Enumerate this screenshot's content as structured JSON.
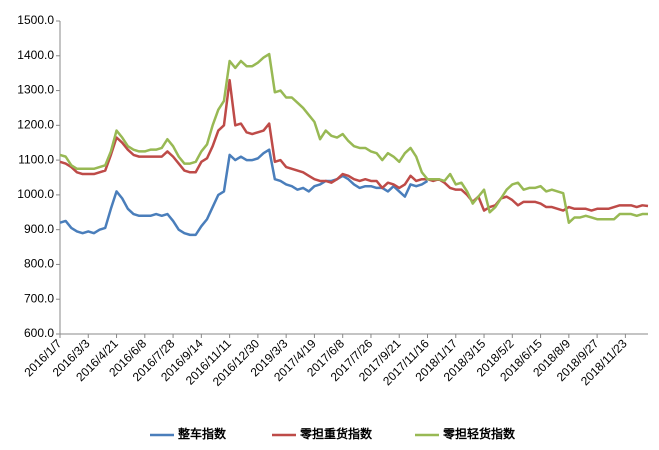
{
  "chart_data": {
    "type": "line",
    "categories": [
      "2016/1/7",
      null,
      null,
      null,
      null,
      "2016/3/3",
      null,
      null,
      null,
      null,
      "2016/4/21",
      null,
      null,
      null,
      null,
      "2016/6/8",
      null,
      null,
      null,
      null,
      "2016/7/28",
      null,
      null,
      null,
      null,
      "2016/9/14",
      null,
      null,
      null,
      null,
      "2016/11/11",
      null,
      null,
      null,
      null,
      "2016/12/30",
      null,
      null,
      null,
      null,
      "2019/3/3",
      null,
      null,
      null,
      null,
      "2017/4/19",
      null,
      null,
      null,
      null,
      "2017/6/8",
      null,
      null,
      null,
      null,
      "2017/7/26",
      null,
      null,
      null,
      null,
      "2017/9/21",
      null,
      null,
      null,
      null,
      "2017/11/16",
      null,
      null,
      null,
      null,
      "2018/1/17",
      null,
      null,
      null,
      null,
      "2018/3/15",
      null,
      null,
      null,
      null,
      "2018/5/2",
      null,
      null,
      null,
      null,
      "2018/6/15",
      null,
      null,
      null,
      null,
      "2018/8/9",
      null,
      null,
      null,
      null,
      "2018/9/27",
      null,
      null,
      null,
      null,
      "2018/11/23",
      null,
      null,
      null,
      null
    ],
    "series": [
      {
        "name": "整车指数",
        "color": "#4a7ebb",
        "values": [
          920,
          925,
          905,
          895,
          890,
          895,
          890,
          900,
          905,
          960,
          1010,
          990,
          960,
          945,
          940,
          940,
          940,
          945,
          940,
          945,
          925,
          900,
          890,
          885,
          885,
          910,
          930,
          965,
          1000,
          1010,
          1115,
          1100,
          1110,
          1100,
          1100,
          1105,
          1120,
          1130,
          1045,
          1040,
          1030,
          1025,
          1015,
          1020,
          1010,
          1025,
          1030,
          1040,
          1040,
          1045,
          1055,
          1045,
          1030,
          1020,
          1025,
          1025,
          1020,
          1020,
          1010,
          1025,
          1010,
          995,
          1030,
          1025,
          1030,
          1040,
          null,
          null,
          null,
          null,
          null,
          null,
          null,
          null,
          null,
          null,
          null,
          null,
          null,
          null,
          null,
          null,
          null,
          null,
          null,
          null,
          null,
          null,
          null,
          null,
          null,
          null,
          null,
          null,
          null,
          null,
          null,
          null,
          null,
          null,
          null,
          null,
          null,
          null,
          null
        ]
      },
      {
        "name": "零担重货指数",
        "color": "#be4b48",
        "values": [
          1095,
          1090,
          1080,
          1065,
          1060,
          1060,
          1060,
          1065,
          1070,
          1115,
          1165,
          1150,
          1130,
          1115,
          1110,
          1110,
          1110,
          1110,
          1110,
          1125,
          1110,
          1090,
          1070,
          1065,
          1065,
          1095,
          1105,
          1140,
          1185,
          1200,
          1330,
          1200,
          1205,
          1180,
          1175,
          1180,
          1185,
          1205,
          1095,
          1100,
          1080,
          1075,
          1070,
          1065,
          1055,
          1045,
          1040,
          1040,
          1035,
          1045,
          1060,
          1055,
          1045,
          1040,
          1045,
          1040,
          1040,
          1020,
          1035,
          1030,
          1020,
          1030,
          1055,
          1040,
          1045,
          1045,
          1040,
          1045,
          1035,
          1020,
          1015,
          1015,
          1000,
          980,
          995,
          955,
          965,
          970,
          990,
          995,
          985,
          970,
          980,
          980,
          980,
          975,
          965,
          965,
          960,
          955,
          965,
          960,
          960,
          960,
          955,
          960,
          960,
          960,
          965,
          970,
          970,
          970,
          965,
          970,
          968
        ]
      },
      {
        "name": "零担轻货指数",
        "color": "#98b954",
        "values": [
          1115,
          1110,
          1085,
          1075,
          1075,
          1075,
          1075,
          1080,
          1085,
          1125,
          1185,
          1165,
          1140,
          1130,
          1125,
          1125,
          1130,
          1130,
          1135,
          1160,
          1140,
          1110,
          1090,
          1090,
          1095,
          1125,
          1145,
          1200,
          1245,
          1270,
          1385,
          1365,
          1385,
          1370,
          1370,
          1380,
          1395,
          1405,
          1295,
          1300,
          1280,
          1280,
          1265,
          1250,
          1230,
          1210,
          1160,
          1185,
          1170,
          1165,
          1175,
          1155,
          1140,
          1135,
          1135,
          1125,
          1120,
          1100,
          1120,
          1110,
          1095,
          1120,
          1135,
          1110,
          1065,
          1045,
          1045,
          1045,
          1040,
          1060,
          1030,
          1035,
          1010,
          975,
          995,
          1015,
          950,
          965,
          990,
          1015,
          1030,
          1035,
          1015,
          1020,
          1020,
          1025,
          1010,
          1015,
          1010,
          1005,
          920,
          935,
          935,
          940,
          935,
          930,
          930,
          930,
          930,
          945,
          945,
          945,
          940,
          945,
          945
        ]
      }
    ],
    "ylim": [
      600,
      1500
    ],
    "yticks": [
      {
        "value": 600,
        "label": "600.0"
      },
      {
        "value": 700,
        "label": "700.0"
      },
      {
        "value": 800,
        "label": "800.0"
      },
      {
        "value": 900,
        "label": "900.0"
      },
      {
        "value": 1000,
        "label": "1000.0"
      },
      {
        "value": 1100,
        "label": "1100.0"
      },
      {
        "value": 1200,
        "label": "1200.0"
      },
      {
        "value": 1300,
        "label": "1300.0"
      },
      {
        "value": 1400,
        "label": "1400.0"
      },
      {
        "value": 1500,
        "label": "1500.0"
      }
    ],
    "grid": false,
    "legend": "bottom"
  }
}
